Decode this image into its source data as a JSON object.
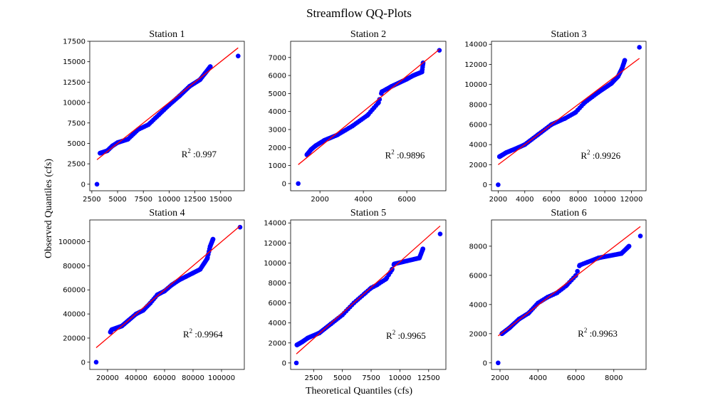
{
  "figure": {
    "title": "Streamflow QQ-Plots",
    "xlabel": "Theoretical Quantiles (cfs)",
    "ylabel": "Observed Quantiles (cfs)"
  },
  "colors": {
    "points": "#0000ff",
    "fit_line": "#ff0000",
    "axes": "#000000"
  },
  "chart_data": [
    {
      "type": "scatter",
      "title": "Station 1",
      "xlim": [
        2300,
        17300
      ],
      "ylim": [
        -800,
        17500
      ],
      "xticks": [
        2500,
        5000,
        7500,
        10000,
        12500,
        15000
      ],
      "yticks": [
        0,
        2500,
        5000,
        7500,
        10000,
        12500,
        15000,
        17500
      ],
      "r2_text": ":0.997",
      "r2_pos": [
        11200,
        3300
      ],
      "line": [
        [
          3000,
          3000
        ],
        [
          16700,
          16700
        ]
      ],
      "anchors": [
        [
          3000,
          0
        ],
        [
          3300,
          3800
        ],
        [
          4000,
          4100
        ],
        [
          4500,
          4700
        ],
        [
          5000,
          5100
        ],
        [
          6000,
          5500
        ],
        [
          7000,
          6700
        ],
        [
          8000,
          7300
        ],
        [
          9000,
          8500
        ],
        [
          10000,
          9700
        ],
        [
          11000,
          10800
        ],
        [
          12000,
          12000
        ],
        [
          13000,
          12800
        ],
        [
          13500,
          13600
        ],
        [
          14000,
          14400
        ],
        [
          16700,
          15700
        ]
      ],
      "n_points": 95
    },
    {
      "type": "scatter",
      "title": "Station 2",
      "xlim": [
        650,
        7800
      ],
      "ylim": [
        -400,
        7900
      ],
      "xticks": [
        2000,
        4000,
        6000
      ],
      "yticks": [
        0,
        1000,
        2000,
        3000,
        4000,
        5000,
        6000,
        7000
      ],
      "r2_text": ":0.9896",
      "r2_pos": [
        5000,
        1400
      ],
      "line": [
        [
          1000,
          1050
        ],
        [
          7500,
          7450
        ]
      ],
      "anchors": [
        [
          1000,
          0
        ],
        [
          1400,
          1600
        ],
        [
          1600,
          1900
        ],
        [
          1800,
          2100
        ],
        [
          2200,
          2400
        ],
        [
          2800,
          2700
        ],
        [
          3500,
          3200
        ],
        [
          4200,
          3800
        ],
        [
          4700,
          4500
        ],
        [
          4850,
          5100
        ],
        [
          5300,
          5400
        ],
        [
          6000,
          5800
        ],
        [
          6300,
          6000
        ],
        [
          6700,
          6200
        ],
        [
          6750,
          6700
        ],
        [
          7500,
          7400
        ]
      ],
      "n_points": 95
    },
    {
      "type": "scatter",
      "title": "Station 3",
      "xlim": [
        1500,
        13100
      ],
      "ylim": [
        -600,
        14300
      ],
      "xticks": [
        2000,
        4000,
        6000,
        8000,
        10000,
        12000
      ],
      "yticks": [
        0,
        2000,
        4000,
        6000,
        8000,
        10000,
        12000,
        14000
      ],
      "r2_text": ":0.9926",
      "r2_pos": [
        8200,
        2600
      ],
      "line": [
        [
          2000,
          2000
        ],
        [
          12600,
          12600
        ]
      ],
      "anchors": [
        [
          2000,
          0
        ],
        [
          2100,
          2800
        ],
        [
          2600,
          3200
        ],
        [
          3500,
          3700
        ],
        [
          4000,
          4000
        ],
        [
          5000,
          5000
        ],
        [
          6000,
          6000
        ],
        [
          7000,
          6600
        ],
        [
          7800,
          7200
        ],
        [
          8500,
          8200
        ],
        [
          9500,
          9200
        ],
        [
          10500,
          10100
        ],
        [
          11000,
          10800
        ],
        [
          11300,
          11600
        ],
        [
          11500,
          12400
        ],
        [
          12600,
          13700
        ]
      ],
      "n_points": 95
    },
    {
      "type": "scatter",
      "title": "Station 4",
      "xlim": [
        7500,
        116000
      ],
      "ylim": [
        -6000,
        118000
      ],
      "xticks": [
        20000,
        40000,
        60000,
        80000,
        100000
      ],
      "yticks": [
        0,
        20000,
        40000,
        60000,
        80000,
        100000
      ],
      "r2_text": ":0.9964",
      "r2_pos": [
        73000,
        20500
      ],
      "line": [
        [
          12000,
          12000
        ],
        [
          113000,
          113000
        ]
      ],
      "anchors": [
        [
          12000,
          0
        ],
        [
          22000,
          25000
        ],
        [
          23000,
          27000
        ],
        [
          30000,
          30000
        ],
        [
          35000,
          35000
        ],
        [
          40000,
          40000
        ],
        [
          45000,
          43000
        ],
        [
          50000,
          49000
        ],
        [
          55000,
          56000
        ],
        [
          60000,
          59000
        ],
        [
          65000,
          64000
        ],
        [
          70000,
          68000
        ],
        [
          75000,
          71000
        ],
        [
          80000,
          74000
        ],
        [
          85000,
          77000
        ],
        [
          90000,
          86000
        ],
        [
          92000,
          96000
        ],
        [
          94000,
          102000
        ],
        [
          113000,
          112000
        ]
      ],
      "n_points": 95
    },
    {
      "type": "scatter",
      "title": "Station 5",
      "xlim": [
        500,
        14000
      ],
      "ylim": [
        -650,
        14300
      ],
      "xticks": [
        2500,
        5000,
        7500,
        10000,
        12500
      ],
      "yticks": [
        0,
        2000,
        4000,
        6000,
        8000,
        10000,
        12000,
        14000
      ],
      "r2_text": ":0.9965",
      "r2_pos": [
        8800,
        2400
      ],
      "line": [
        [
          1000,
          900
        ],
        [
          13500,
          13700
        ]
      ],
      "anchors": [
        [
          1000,
          0
        ],
        [
          1050,
          1800
        ],
        [
          1500,
          2100
        ],
        [
          2000,
          2500
        ],
        [
          3000,
          3000
        ],
        [
          4000,
          3900
        ],
        [
          5000,
          4800
        ],
        [
          6000,
          6000
        ],
        [
          7000,
          7000
        ],
        [
          7500,
          7500
        ],
        [
          8000,
          7800
        ],
        [
          8800,
          8400
        ],
        [
          9300,
          9300
        ],
        [
          9500,
          9900
        ],
        [
          11700,
          10500
        ],
        [
          12000,
          11400
        ],
        [
          13500,
          12900
        ]
      ],
      "n_points": 95
    },
    {
      "type": "scatter",
      "title": "Station 6",
      "xlim": [
        1550,
        9700
      ],
      "ylim": [
        -450,
        9800
      ],
      "xticks": [
        2000,
        4000,
        6000,
        8000
      ],
      "yticks": [
        0,
        2000,
        4000,
        6000,
        8000
      ],
      "r2_text": ":0.9963",
      "r2_pos": [
        6100,
        1800
      ],
      "line": [
        [
          1900,
          1850
        ],
        [
          9400,
          9350
        ]
      ],
      "anchors": [
        [
          1900,
          0
        ],
        [
          2100,
          2000
        ],
        [
          2500,
          2400
        ],
        [
          3000,
          3000
        ],
        [
          3500,
          3400
        ],
        [
          4000,
          4100
        ],
        [
          4500,
          4500
        ],
        [
          5000,
          4800
        ],
        [
          5500,
          5300
        ],
        [
          6000,
          6000
        ],
        [
          6200,
          6700
        ],
        [
          6600,
          6900
        ],
        [
          7200,
          7200
        ],
        [
          8400,
          7500
        ],
        [
          8800,
          8000
        ],
        [
          9400,
          8700
        ]
      ],
      "n_points": 95
    }
  ]
}
